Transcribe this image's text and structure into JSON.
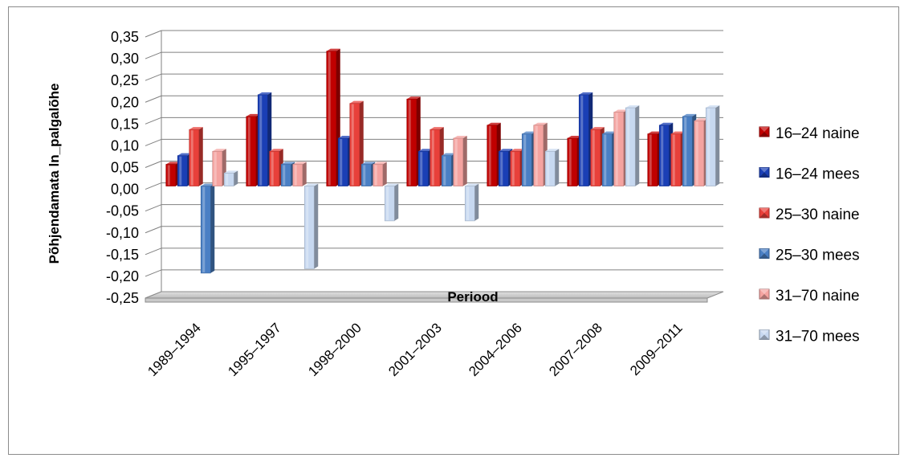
{
  "chart_data": {
    "type": "bar",
    "title": "",
    "xlabel": "Periood",
    "ylabel": "Põhjendamata ln_palgalõhe",
    "ylim": [
      -0.25,
      0.35
    ],
    "ytick_step": 0.05,
    "tick_labels": [
      "-0,25",
      "-0,20",
      "-0,15",
      "-0,10",
      "-0,05",
      "0,00",
      "0,05",
      "0,10",
      "0,15",
      "0,20",
      "0,25",
      "0,30",
      "0,35"
    ],
    "categories": [
      "1989–1994",
      "1995–1997",
      "1998–2000",
      "2001–2003",
      "2004–2006",
      "2007–2008",
      "2009–2011"
    ],
    "grid": true,
    "legend_position": "right",
    "series": [
      {
        "name": "16–24 naine",
        "color": "#c00000",
        "values": [
          0.05,
          0.16,
          0.31,
          0.2,
          0.14,
          0.11,
          0.12
        ]
      },
      {
        "name": "16–24 mees",
        "color": "#1a3fb5",
        "values": [
          0.07,
          0.21,
          0.11,
          0.08,
          0.08,
          0.21,
          0.14
        ]
      },
      {
        "name": "25–30 naine",
        "color": "#e8403a",
        "values": [
          0.13,
          0.08,
          0.19,
          0.13,
          0.08,
          0.13,
          0.12
        ]
      },
      {
        "name": "25–30 mees",
        "color": "#4a7fc4",
        "values": [
          -0.2,
          0.05,
          0.05,
          0.07,
          0.12,
          0.12,
          0.16
        ]
      },
      {
        "name": "31–70 naine",
        "color": "#f4a3a0",
        "values": [
          0.08,
          0.05,
          0.05,
          0.11,
          0.14,
          0.17,
          0.15
        ]
      },
      {
        "name": "31–70 mees",
        "color": "#c7d8f0",
        "values": [
          0.03,
          -0.19,
          -0.08,
          -0.08,
          0.08,
          0.18,
          0.18
        ]
      }
    ]
  }
}
